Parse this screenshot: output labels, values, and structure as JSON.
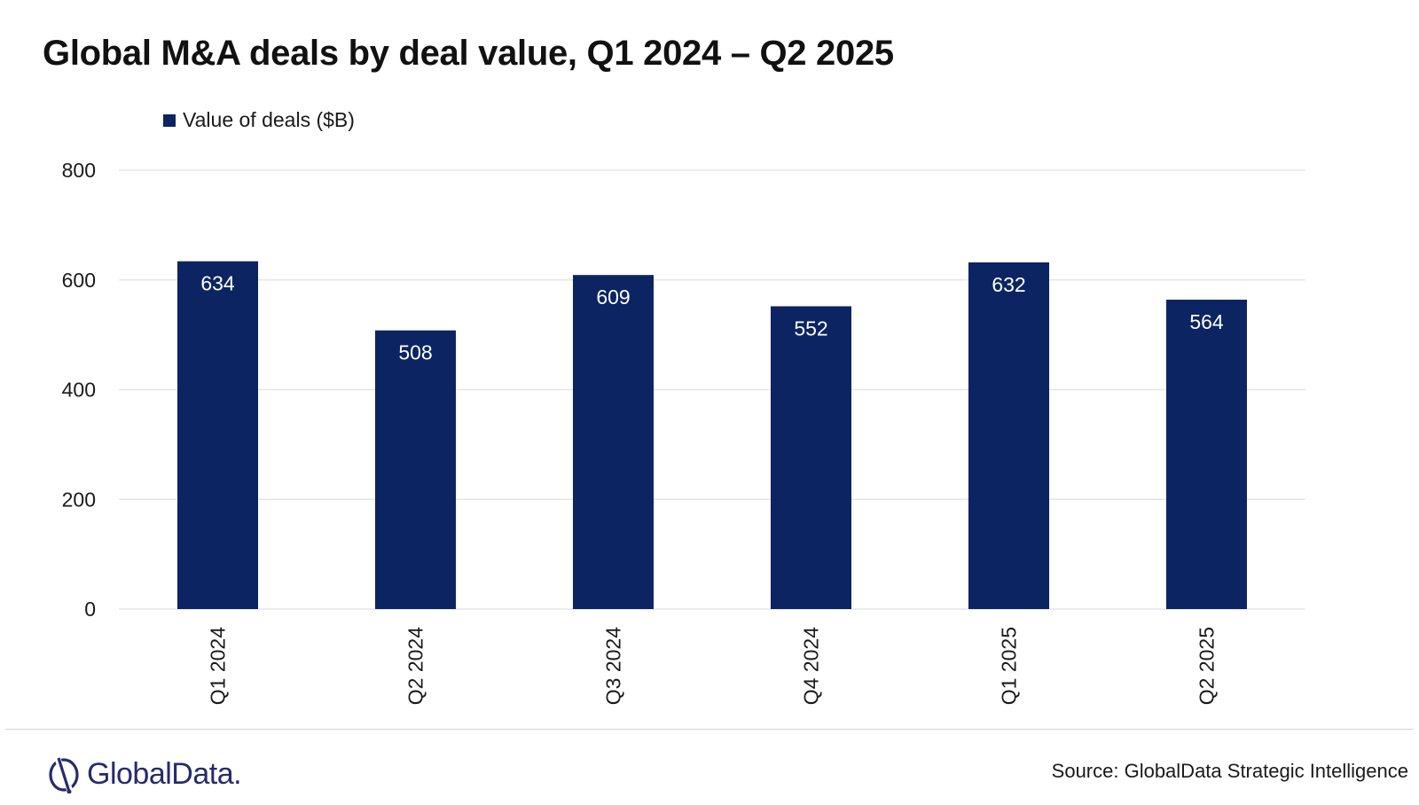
{
  "title": "Global M&A deals by deal value, Q1 2024 – Q2 2025",
  "legend": {
    "label": "Value of deals ($B)"
  },
  "colors": {
    "bar": "#0c2461",
    "grid": "#e3e6ea",
    "text": "#1a1a1a"
  },
  "chart_data": {
    "type": "bar",
    "title": "Global M&A deals by deal value, Q1 2024 – Q2 2025",
    "xlabel": "",
    "ylabel": "",
    "categories": [
      "Q1 2024",
      "Q2 2024",
      "Q3 2024",
      "Q4 2024",
      "Q1 2025",
      "Q2 2025"
    ],
    "series": [
      {
        "name": "Value of deals ($B)",
        "values": [
          634,
          508,
          609,
          552,
          632,
          564
        ]
      }
    ],
    "ylim": [
      0,
      800
    ],
    "yticks": [
      0,
      200,
      400,
      600,
      800
    ],
    "grid": true,
    "legend_position": "top-left"
  },
  "footer": {
    "logo_text": "GlobalData.",
    "logo_icon": "globaldata-logo-icon",
    "source": "Source: GlobalData Strategic Intelligence"
  }
}
